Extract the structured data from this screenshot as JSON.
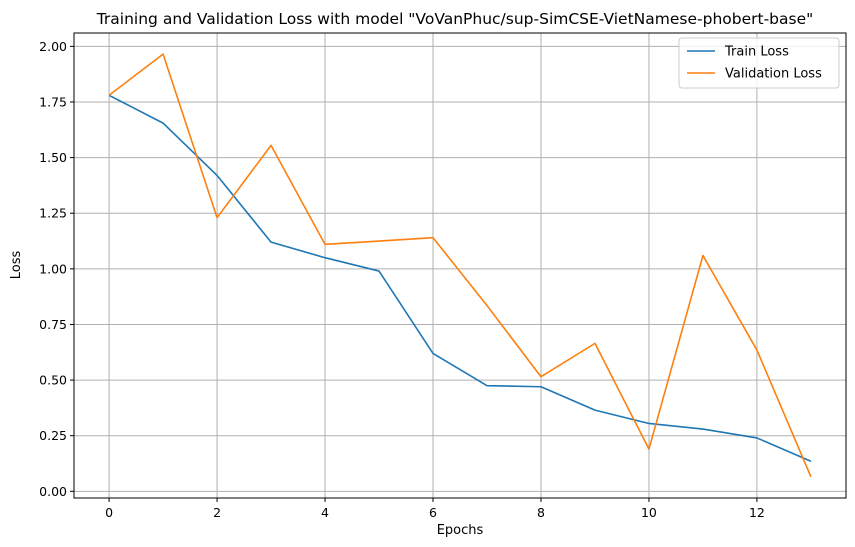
{
  "chart_data": {
    "type": "line",
    "title": "Training and Validation Loss with model \"VoVanPhuc/sup-SimCSE-VietNamese-phobert-base\"",
    "xlabel": "Epochs",
    "ylabel": "Loss",
    "x": [
      0,
      1,
      2,
      3,
      4,
      5,
      6,
      7,
      8,
      9,
      10,
      11,
      12,
      13
    ],
    "xlim": [
      -0.65,
      13.65
    ],
    "ylim": [
      -0.03,
      2.06
    ],
    "xticks": [
      0,
      2,
      4,
      6,
      8,
      10,
      12
    ],
    "xtick_labels": [
      "0",
      "2",
      "4",
      "6",
      "8",
      "10",
      "12"
    ],
    "yticks": [
      0.0,
      0.25,
      0.5,
      0.75,
      1.0,
      1.25,
      1.5,
      1.75,
      2.0
    ],
    "ytick_labels": [
      "0.00",
      "0.25",
      "0.50",
      "0.75",
      "1.00",
      "1.25",
      "1.50",
      "1.75",
      "2.00"
    ],
    "grid": true,
    "legend_position": "top-right",
    "series": [
      {
        "name": "Train Loss",
        "color": "#1f77b4",
        "values": [
          1.78,
          1.655,
          1.42,
          1.12,
          1.05,
          0.99,
          0.62,
          0.475,
          0.47,
          0.365,
          0.305,
          0.28,
          0.24,
          0.135
        ]
      },
      {
        "name": "Validation Loss",
        "color": "#ff7f0e",
        "values": [
          1.78,
          1.965,
          1.23,
          1.555,
          1.11,
          1.125,
          1.14,
          0.835,
          0.515,
          0.665,
          0.19,
          1.06,
          0.635,
          0.065
        ]
      }
    ]
  }
}
